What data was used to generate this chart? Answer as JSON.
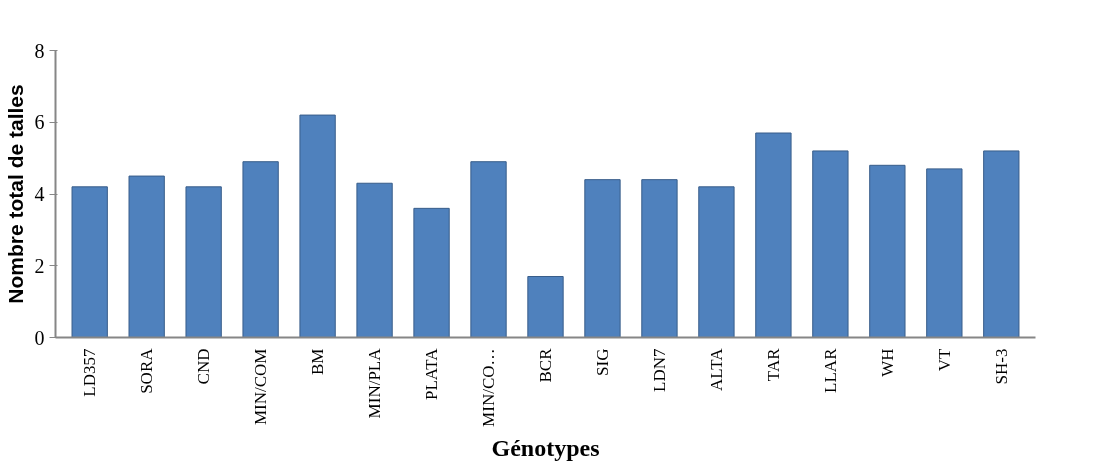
{
  "chart_data": {
    "type": "bar",
    "xlabel": "Génotypes",
    "ylabel": "Nombre total de talles",
    "categories": [
      "LD357",
      "SORA",
      "CND",
      "MIN/COM",
      "BM",
      "MIN/PLA",
      "PLATA",
      "MIN/CO…",
      "BCR",
      "SIG",
      "LDN7",
      "ALTA",
      "TAR",
      "LLAR",
      "WH",
      "VT",
      "SH-3"
    ],
    "values": [
      4.2,
      4.5,
      4.2,
      4.9,
      6.2,
      4.3,
      3.6,
      4.9,
      1.7,
      4.4,
      4.4,
      4.2,
      5.7,
      5.2,
      4.8,
      4.7,
      5.2
    ],
    "color": "#4f81bd",
    "ylim": [
      0,
      8
    ],
    "yticks": [
      0,
      2,
      4,
      6,
      8
    ],
    "grid": false
  }
}
